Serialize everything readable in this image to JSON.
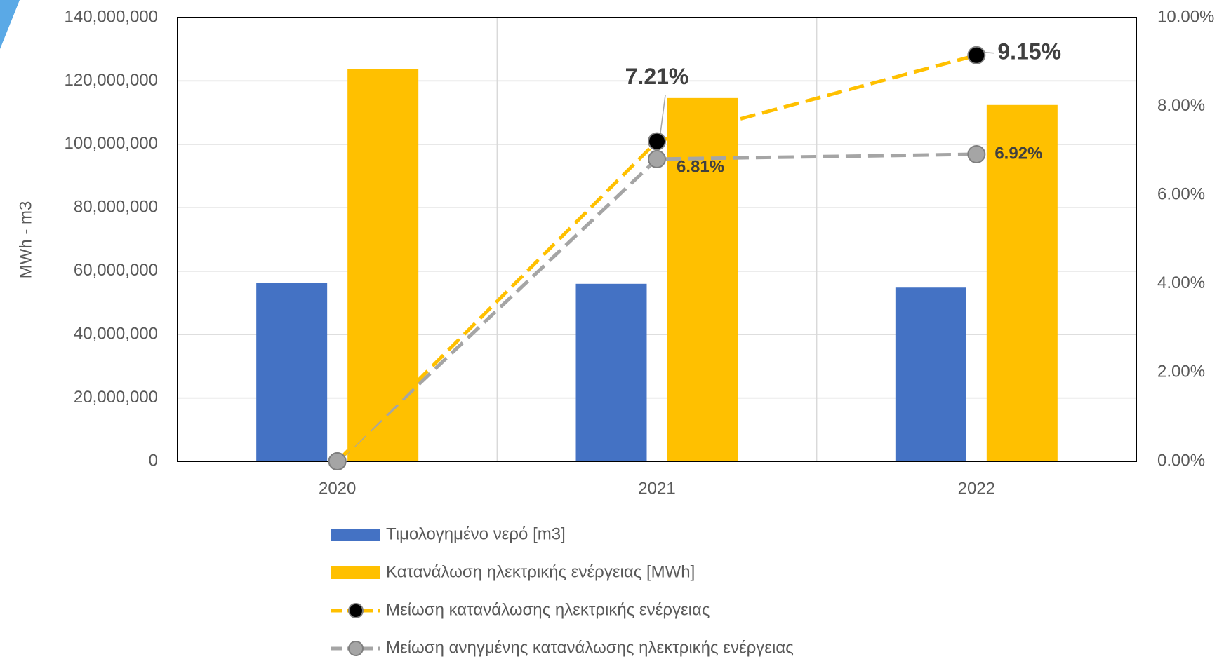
{
  "chart_data": {
    "type": "bar",
    "categories": [
      "2020",
      "2021",
      "2022"
    ],
    "y_label": "MWh - m3",
    "ylim": [
      0,
      140000000
    ],
    "yticks": [
      {
        "value": 0,
        "label": "0"
      },
      {
        "value": 20000000,
        "label": "20,000,000"
      },
      {
        "value": 40000000,
        "label": "40,000,000"
      },
      {
        "value": 60000000,
        "label": "60,000,000"
      },
      {
        "value": 80000000,
        "label": "80,000,000"
      },
      {
        "value": 100000000,
        "label": "100,000,000"
      },
      {
        "value": 120000000,
        "label": "120,000,000"
      },
      {
        "value": 140000000,
        "label": "140,000,000"
      }
    ],
    "y2lim": [
      0,
      10
    ],
    "y2ticks": [
      {
        "value": 0,
        "label": "0.00%"
      },
      {
        "value": 2,
        "label": "2.00%"
      },
      {
        "value": 4,
        "label": "4.00%"
      },
      {
        "value": 6,
        "label": "6.00%"
      },
      {
        "value": 8,
        "label": "8.00%"
      },
      {
        "value": 10,
        "label": "10.00%"
      }
    ],
    "grid": true,
    "legend": "bottom",
    "series": [
      {
        "name": "Τιμολογημένο νερό [m3]",
        "type": "bar",
        "color": "#4472c4",
        "values": [
          56200000,
          56000000,
          54800000
        ]
      },
      {
        "name": "Κατανάλωση ηλεκτρικής ενέργειας [MWh]",
        "type": "bar",
        "color": "#ffc000",
        "values": [
          123800000,
          114600000,
          112400000
        ]
      },
      {
        "name": "Μείωση κατανάλωσης ηλεκτρικής ενέργειας",
        "type": "line",
        "axis": "y2",
        "color": "#ffc000",
        "marker_color": "#000000",
        "values": [
          0,
          7.21,
          9.15
        ],
        "value_labels": [
          null,
          "7.21%",
          "9.15%"
        ]
      },
      {
        "name": "Μείωση ανηγμένης κατανάλωσης ηλεκτρικής ενέργειας",
        "type": "line",
        "axis": "y2",
        "color": "#a5a5a5",
        "marker_color": "#a5a5a5",
        "values": [
          0,
          6.81,
          6.92
        ],
        "value_labels": [
          null,
          "6.81%",
          "6.92%"
        ]
      }
    ]
  }
}
